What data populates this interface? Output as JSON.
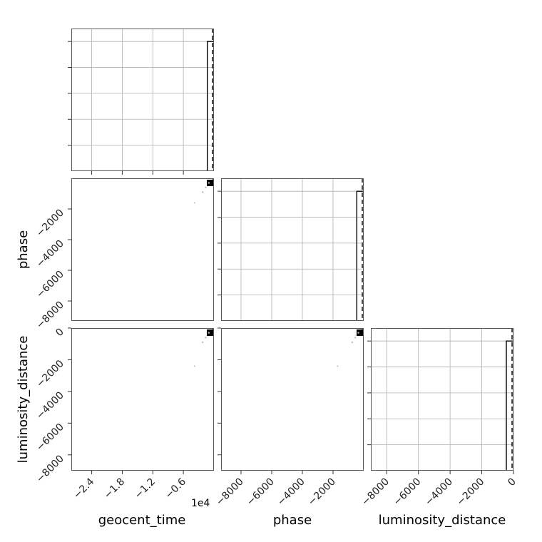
{
  "chart_data": {
    "type": "corner",
    "parameters": [
      "geocent_time",
      "phase",
      "luminosity_distance"
    ],
    "grid": true,
    "offset_text": "1e4",
    "panels": [
      {
        "id": "hist-geocent_time",
        "kind": "histogram",
        "x_param": "geocent_time",
        "xlim": [
          -28000,
          0
        ],
        "x_scale": 10000,
        "xticks": [
          -24000,
          -18000,
          -12000,
          -6000
        ],
        "xtick_labels": [
          "−2.4",
          "−1.8",
          "−1.2",
          "−0.6"
        ],
        "bins": [
          {
            "x0": -1300,
            "x1": 0,
            "density": 1
          }
        ],
        "dashed_lines": [
          0
        ],
        "ylim": [
          0,
          1.1
        ]
      },
      {
        "id": "hist-phase",
        "kind": "histogram",
        "x_param": "phase",
        "xlim": [
          -9300,
          0
        ],
        "xticks": [
          -8000,
          -6000,
          -4000,
          -2000
        ],
        "xtick_labels": [
          "−8000",
          "−6000",
          "−4000",
          "−2000"
        ],
        "bins": [
          {
            "x0": -450,
            "x1": 0,
            "density": 1
          }
        ],
        "dashed_lines": [
          0
        ],
        "ylim": [
          0,
          1.1
        ]
      },
      {
        "id": "hist-luminosity_distance",
        "kind": "histogram",
        "x_param": "luminosity_distance",
        "xlim": [
          -9000,
          0
        ],
        "xticks": [
          -8000,
          -6000,
          -4000,
          -2000,
          0
        ],
        "xtick_labels": [
          "−8000",
          "−6000",
          "−4000",
          "−2000",
          "0"
        ],
        "bins": [
          {
            "x0": -450,
            "x1": 0,
            "density": 1
          }
        ],
        "dashed_lines": [
          0
        ],
        "ylim": [
          0,
          1.1
        ]
      },
      {
        "id": "scatter-geocent_time-phase",
        "kind": "scatter",
        "x_param": "geocent_time",
        "y_param": "phase",
        "xlim": [
          -28000,
          0
        ],
        "ylim": [
          -9300,
          0
        ],
        "yticks": [
          -8000,
          -6000,
          -4000,
          -2000
        ],
        "ytick_labels": [
          "−8000",
          "−6000",
          "−4000",
          "−2000"
        ],
        "points": [
          [
            -200,
            -50
          ],
          [
            -1000,
            -300
          ],
          [
            -1600,
            -600
          ],
          [
            -2200,
            -900
          ],
          [
            -3800,
            -1600
          ]
        ]
      },
      {
        "id": "scatter-geocent_time-luminosity_distance",
        "kind": "scatter",
        "x_param": "geocent_time",
        "y_param": "luminosity_distance",
        "xlim": [
          -28000,
          0
        ],
        "ylim": [
          -9000,
          0
        ],
        "yticks": [
          -8000,
          -6000,
          -4000,
          -2000,
          0
        ],
        "ytick_labels": [
          "−8000",
          "−6000",
          "−4000",
          "−2000",
          "0"
        ],
        "points": [
          [
            -200,
            -50
          ],
          [
            -1000,
            -300
          ],
          [
            -1600,
            -600
          ],
          [
            -2200,
            -900
          ],
          [
            -3800,
            -2400
          ]
        ]
      },
      {
        "id": "scatter-phase-luminosity_distance",
        "kind": "scatter",
        "x_param": "phase",
        "y_param": "luminosity_distance",
        "xlim": [
          -9300,
          0
        ],
        "ylim": [
          -9000,
          0
        ],
        "points": [
          [
            -100,
            -50
          ],
          [
            -350,
            -300
          ],
          [
            -550,
            -600
          ],
          [
            -750,
            -900
          ],
          [
            -1700,
            -2400
          ]
        ]
      }
    ]
  }
}
